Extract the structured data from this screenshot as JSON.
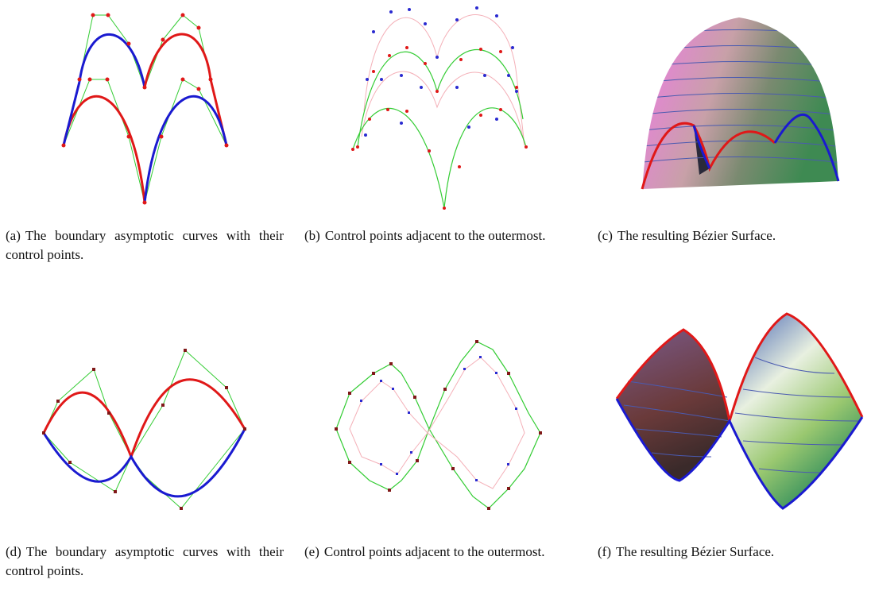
{
  "panels": [
    {
      "label": "(a)",
      "caption": "The boundary asymptotic curves with their control points."
    },
    {
      "label": "(b)",
      "caption": "Control points adjacent to the outermost."
    },
    {
      "label": "(c)",
      "caption": "The resulting Bézier Surface."
    },
    {
      "label": "(d)",
      "caption": "The boundary asymptotic curves with their control points."
    },
    {
      "label": "(e)",
      "caption": "Control points adjacent to the outermost."
    },
    {
      "label": "(f)",
      "caption": "The resulting Bézier Surface."
    }
  ]
}
